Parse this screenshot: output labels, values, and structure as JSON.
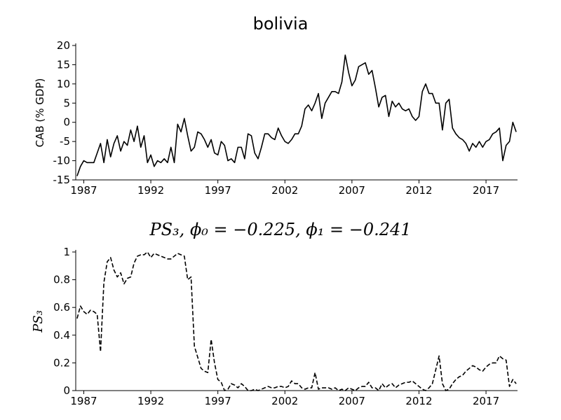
{
  "chart_data": [
    {
      "type": "line",
      "title": "bolivia",
      "ylabel": "CAB (% GDP)",
      "color": "#000000",
      "linestyle": "solid",
      "x": [
        1986.5,
        1986.75,
        1987,
        1987.25,
        1987.5,
        1987.75,
        1988,
        1988.25,
        1988.5,
        1988.75,
        1989,
        1989.25,
        1989.5,
        1989.75,
        1990,
        1990.25,
        1990.5,
        1990.75,
        1991,
        1991.25,
        1991.5,
        1991.75,
        1992,
        1992.25,
        1992.5,
        1992.75,
        1993,
        1993.25,
        1993.5,
        1993.75,
        1994,
        1994.25,
        1994.5,
        1994.75,
        1995,
        1995.25,
        1995.5,
        1995.75,
        1996,
        1996.25,
        1996.5,
        1996.75,
        1997,
        1997.25,
        1997.5,
        1997.75,
        1998,
        1998.25,
        1998.5,
        1998.75,
        1999,
        1999.25,
        1999.5,
        1999.75,
        2000,
        2000.25,
        2000.5,
        2000.75,
        2001,
        2001.25,
        2001.5,
        2001.75,
        2002,
        2002.25,
        2002.5,
        2002.75,
        2003,
        2003.25,
        2003.5,
        2003.75,
        2004,
        2004.25,
        2004.5,
        2004.75,
        2005,
        2005.25,
        2005.5,
        2005.75,
        2006,
        2006.25,
        2006.5,
        2006.75,
        2007,
        2007.25,
        2007.5,
        2007.75,
        2008,
        2008.25,
        2008.5,
        2008.75,
        2009,
        2009.25,
        2009.5,
        2009.75,
        2010,
        2010.25,
        2010.5,
        2010.75,
        2011,
        2011.25,
        2011.5,
        2011.75,
        2012,
        2012.25,
        2012.5,
        2012.75,
        2013,
        2013.25,
        2013.5,
        2013.75,
        2014,
        2014.25,
        2014.5,
        2014.75,
        2015,
        2015.25,
        2015.5,
        2015.75,
        2016,
        2016.25,
        2016.5,
        2016.75,
        2017,
        2017.25,
        2017.5,
        2017.75,
        2018,
        2018.25,
        2018.5,
        2018.75,
        2019,
        2019.25
      ],
      "values": [
        -14,
        -11.5,
        -10,
        -10.5,
        -10.5,
        -10.5,
        -8,
        -5.5,
        -10.5,
        -4.5,
        -9,
        -5.5,
        -3.5,
        -7.5,
        -5,
        -6,
        -2,
        -5,
        -1,
        -6.5,
        -3.5,
        -10.5,
        -8.5,
        -11.5,
        -10,
        -10.5,
        -9.5,
        -10.5,
        -6.5,
        -10.5,
        -0.5,
        -2.5,
        1,
        -3.5,
        -7.5,
        -6.5,
        -2.5,
        -3,
        -4.5,
        -6.5,
        -4.5,
        -8,
        -8.5,
        -5,
        -6,
        -10,
        -9.5,
        -10.5,
        -6.5,
        -6.5,
        -9.5,
        -3,
        -3.5,
        -8,
        -9.5,
        -6.5,
        -3,
        -3,
        -4,
        -4.5,
        -1.5,
        -3.5,
        -5,
        -5.5,
        -4.5,
        -3,
        -3,
        -1,
        3.5,
        4.5,
        3,
        5,
        7.5,
        1,
        5,
        6.5,
        8,
        8,
        7.5,
        10.5,
        17.5,
        13,
        9.5,
        11,
        14.5,
        15,
        15.5,
        12.5,
        13.5,
        9,
        4,
        6.5,
        7,
        1.5,
        5.5,
        4,
        5,
        3.5,
        3,
        3.5,
        1.5,
        0.5,
        1.5,
        8,
        10,
        7.5,
        7.5,
        5,
        5,
        -2,
        5,
        6,
        -1.5,
        -3,
        -4,
        -4.5,
        -5.5,
        -7.5,
        -5.5,
        -6.5,
        -5,
        -6.5,
        -5,
        -4.5,
        -3,
        -2.5,
        -1.5,
        -10,
        -6,
        -5,
        0,
        -2.5
      ],
      "xlim": [
        1986.4,
        2019.35
      ],
      "xticks": [
        1987,
        1992,
        1997,
        2002,
        2007,
        2012,
        2017
      ],
      "ylim": [
        -15,
        20
      ],
      "yticks": [
        -15,
        -10,
        -5,
        0,
        5,
        10,
        15,
        20
      ]
    },
    {
      "type": "line",
      "title": "PS₃, ϕ₀ = −0.225, ϕ₁ = −0.241",
      "ylabel": "PS₃",
      "color": "#000000",
      "linestyle": "dashed",
      "x": [
        1986.5,
        1986.75,
        1987,
        1987.25,
        1987.5,
        1987.75,
        1988,
        1988.25,
        1988.5,
        1988.75,
        1989,
        1989.25,
        1989.5,
        1989.75,
        1990,
        1990.25,
        1990.5,
        1990.75,
        1991,
        1991.25,
        1991.5,
        1991.75,
        1992,
        1992.25,
        1992.5,
        1992.75,
        1993,
        1993.25,
        1993.5,
        1993.75,
        1994,
        1994.25,
        1994.5,
        1994.75,
        1995,
        1995.25,
        1995.5,
        1995.75,
        1996,
        1996.25,
        1996.5,
        1996.75,
        1997,
        1997.25,
        1997.5,
        1997.75,
        1998,
        1998.25,
        1998.5,
        1998.75,
        1999,
        1999.25,
        1999.5,
        1999.75,
        2000,
        2000.25,
        2000.5,
        2000.75,
        2001,
        2001.25,
        2001.5,
        2001.75,
        2002,
        2002.25,
        2002.5,
        2002.75,
        2003,
        2003.25,
        2003.5,
        2003.75,
        2004,
        2004.25,
        2004.5,
        2004.75,
        2005,
        2005.25,
        2005.5,
        2005.75,
        2006,
        2006.25,
        2006.5,
        2006.75,
        2007,
        2007.25,
        2007.5,
        2007.75,
        2008,
        2008.25,
        2008.5,
        2008.75,
        2009,
        2009.25,
        2009.5,
        2009.75,
        2010,
        2010.25,
        2010.5,
        2010.75,
        2011,
        2011.25,
        2011.5,
        2011.75,
        2012,
        2012.25,
        2012.5,
        2012.75,
        2013,
        2013.25,
        2013.5,
        2013.75,
        2014,
        2014.25,
        2014.5,
        2014.75,
        2015,
        2015.25,
        2015.5,
        2015.75,
        2016,
        2016.25,
        2016.5,
        2016.75,
        2017,
        2017.25,
        2017.5,
        2017.75,
        2018,
        2018.25,
        2018.5,
        2018.75,
        2019,
        2019.25
      ],
      "values": [
        0.52,
        0.61,
        0.57,
        0.55,
        0.58,
        0.57,
        0.55,
        0.28,
        0.78,
        0.93,
        0.96,
        0.87,
        0.82,
        0.85,
        0.77,
        0.81,
        0.82,
        0.92,
        0.97,
        0.98,
        0.98,
        1.0,
        0.96,
        0.99,
        0.98,
        0.97,
        0.96,
        0.95,
        0.95,
        0.97,
        0.99,
        0.98,
        0.97,
        0.8,
        0.82,
        0.32,
        0.24,
        0.16,
        0.14,
        0.13,
        0.37,
        0.2,
        0.08,
        0.06,
        0.0,
        0.01,
        0.05,
        0.04,
        0.02,
        0.05,
        0.03,
        0.0,
        0.0,
        0.01,
        0.0,
        0.01,
        0.02,
        0.03,
        0.02,
        0.02,
        0.03,
        0.03,
        0.02,
        0.03,
        0.07,
        0.05,
        0.05,
        0.02,
        0.01,
        0.02,
        0.02,
        0.13,
        0.01,
        0.02,
        0.02,
        0.02,
        0.01,
        0.02,
        0.0,
        0.01,
        0.0,
        0.02,
        0.01,
        0.0,
        0.02,
        0.03,
        0.03,
        0.06,
        0.02,
        0.02,
        0.0,
        0.05,
        0.02,
        0.04,
        0.05,
        0.02,
        0.04,
        0.05,
        0.06,
        0.06,
        0.07,
        0.05,
        0.03,
        0.01,
        0.0,
        0.02,
        0.05,
        0.15,
        0.25,
        0.05,
        0.0,
        0.01,
        0.05,
        0.08,
        0.1,
        0.11,
        0.14,
        0.16,
        0.18,
        0.17,
        0.15,
        0.14,
        0.17,
        0.19,
        0.2,
        0.2,
        0.25,
        0.23,
        0.22,
        0.03,
        0.08,
        0.05
      ],
      "xlim": [
        1986.4,
        2019.35
      ],
      "xticks": [
        1987,
        1992,
        1997,
        2002,
        2007,
        2012,
        2017
      ],
      "ylim": [
        0,
        1
      ],
      "yticks": [
        0,
        0.2,
        0.4,
        0.6,
        0.8,
        1
      ]
    }
  ]
}
